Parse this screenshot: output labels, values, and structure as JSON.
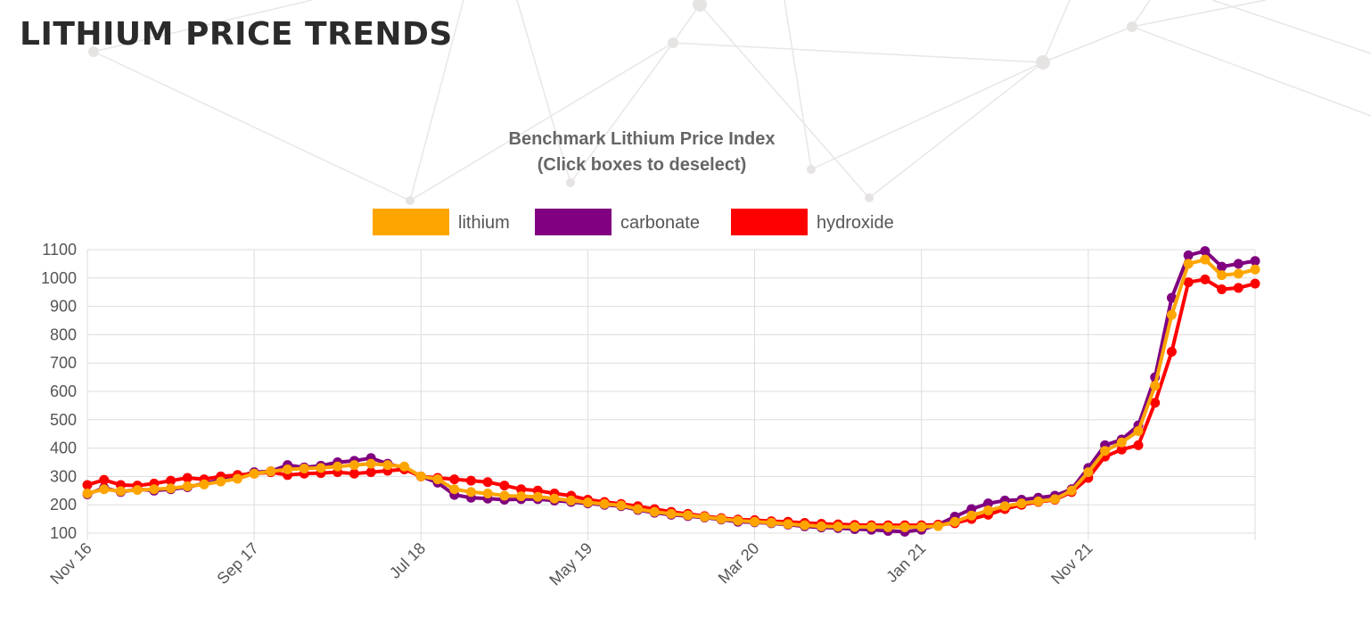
{
  "page": {
    "title": "LITHIUM PRICE TRENDS"
  },
  "chart_data": {
    "type": "line",
    "title_lines": [
      "Benchmark Lithium Price Index",
      "(Click boxes to deselect)"
    ],
    "xlabel": "",
    "ylabel": "",
    "ylim": [
      100,
      1100
    ],
    "y_ticks": [
      100,
      200,
      300,
      400,
      500,
      600,
      700,
      800,
      900,
      1000,
      1100
    ],
    "x_start": "2016-11",
    "x_tick_labels": [
      "Nov 16",
      "Sep 17",
      "Jul 18",
      "May 19",
      "Mar 20",
      "Jan 21",
      "Nov 21"
    ],
    "x_tick_indices": [
      0,
      10,
      20,
      30,
      40,
      50,
      60
    ],
    "grid": true,
    "legend_position": "top-center",
    "series": [
      {
        "name": "lithium",
        "color": "#FFA500",
        "values": [
          240,
          255,
          248,
          252,
          255,
          258,
          265,
          272,
          282,
          292,
          310,
          318,
          325,
          328,
          330,
          335,
          340,
          345,
          340,
          335,
          300,
          290,
          255,
          245,
          240,
          232,
          230,
          228,
          222,
          215,
          208,
          203,
          198,
          185,
          175,
          168,
          163,
          157,
          150,
          144,
          140,
          137,
          132,
          128,
          124,
          123,
          122,
          122,
          121,
          121,
          122,
          125,
          140,
          162,
          180,
          195,
          205,
          212,
          220,
          250,
          315,
          390,
          420,
          460,
          620,
          870,
          1050,
          1065,
          1010,
          1015,
          1030
        ]
      },
      {
        "name": "carbonate",
        "color": "#800080",
        "values": [
          237,
          260,
          245,
          255,
          250,
          255,
          262,
          275,
          288,
          300,
          315,
          318,
          340,
          332,
          338,
          350,
          355,
          365,
          345,
          330,
          300,
          278,
          235,
          225,
          222,
          218,
          220,
          220,
          215,
          210,
          205,
          200,
          195,
          182,
          172,
          165,
          160,
          155,
          148,
          140,
          138,
          135,
          130,
          124,
          120,
          118,
          114,
          112,
          108,
          105,
          112,
          130,
          158,
          185,
          205,
          215,
          218,
          225,
          232,
          255,
          330,
          410,
          430,
          480,
          650,
          930,
          1080,
          1095,
          1040,
          1050,
          1060
        ]
      },
      {
        "name": "hydroxide",
        "color": "#FF0000",
        "values": [
          270,
          288,
          270,
          268,
          275,
          285,
          295,
          290,
          300,
          305,
          310,
          315,
          305,
          310,
          312,
          315,
          310,
          315,
          320,
          325,
          300,
          295,
          290,
          285,
          280,
          268,
          255,
          250,
          240,
          232,
          218,
          210,
          203,
          195,
          185,
          175,
          168,
          160,
          153,
          148,
          146,
          142,
          140,
          136,
          133,
          131,
          129,
          128,
          128,
          128,
          128,
          130,
          135,
          150,
          165,
          185,
          200,
          210,
          218,
          245,
          295,
          370,
          395,
          410,
          560,
          740,
          985,
          995,
          960,
          965,
          980
        ]
      }
    ]
  }
}
